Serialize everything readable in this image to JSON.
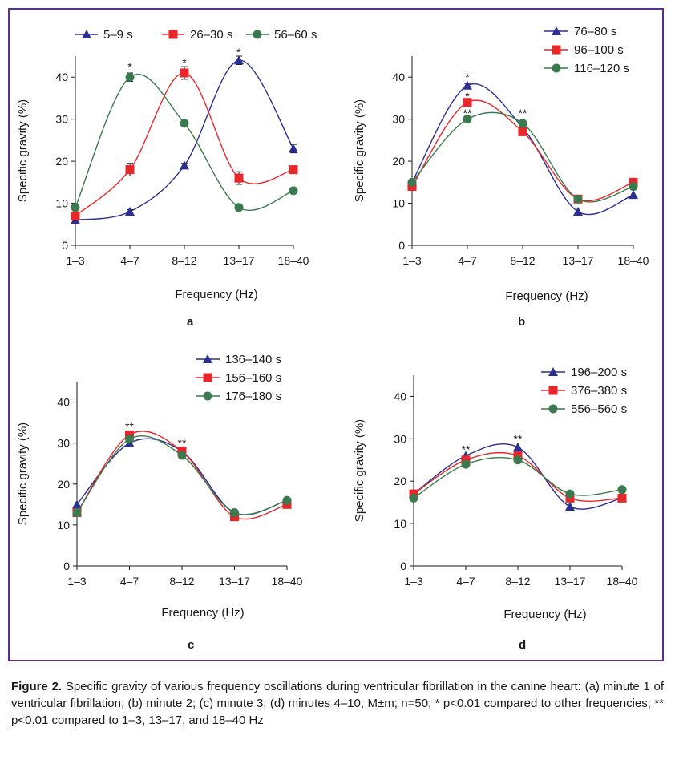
{
  "figure": {
    "caption_lead": "Figure 2.",
    "caption_text": " Specific gravity of various frequency oscillations during ventricular fibrillation in the canine heart: (a) minute 1 of ventricular fibrillation; (b) minute 2; (c) minute 3; (d) minutes 4–10; M±m; n=50; * p<0.01 compared to other frequencies; ** p<0.01 compared to 1–3, 13–17, and 18–40 Hz",
    "border_color": "#5b2d8c"
  },
  "chart_data": [
    {
      "panel": "a",
      "type": "line",
      "categories": [
        "1–3",
        "4–7",
        "8–12",
        "13–17",
        "18–40"
      ],
      "xlabel": "Frequency (Hz)",
      "ylabel": "Specific gravity (%)",
      "ylim": [
        0,
        45
      ],
      "yticks": [
        0,
        10,
        20,
        30,
        40
      ],
      "legend": "top-horizontal",
      "series": [
        {
          "name": "5–9 s",
          "color": "#2b2f8f",
          "marker": "triangle",
          "values": [
            6,
            8,
            19,
            44,
            23
          ],
          "err": [
            0,
            0.5,
            0.5,
            1,
            1
          ]
        },
        {
          "name": "26–30 s",
          "color": "#e8272a",
          "marker": "square",
          "values": [
            7,
            18,
            41,
            16,
            18
          ],
          "err": [
            0,
            1.5,
            1.5,
            1.5,
            0
          ]
        },
        {
          "name": "56–60 s",
          "color": "#3a7a4e",
          "marker": "circle",
          "values": [
            9,
            40,
            29,
            9,
            13
          ],
          "err": [
            0,
            1,
            0,
            0,
            0
          ]
        }
      ],
      "annotations": [
        {
          "category": "4–7",
          "y": 42.5,
          "text": "*"
        },
        {
          "category": "8–12",
          "y": 43.5,
          "text": "*"
        },
        {
          "category": "13–17",
          "y": 46,
          "text": "*"
        }
      ]
    },
    {
      "panel": "b",
      "type": "line",
      "categories": [
        "1–3",
        "4–7",
        "8–12",
        "13–17",
        "18–40"
      ],
      "xlabel": "Frequency (Hz)",
      "ylabel": "Specific gravity (%)",
      "ylim": [
        0,
        45
      ],
      "yticks": [
        0,
        10,
        20,
        30,
        40
      ],
      "legend": "top-right",
      "series": [
        {
          "name": "76–80 s",
          "color": "#2b2f8f",
          "marker": "triangle",
          "values": [
            15,
            38,
            28,
            8,
            12
          ],
          "err": [
            0,
            0.5,
            0,
            0,
            0
          ]
        },
        {
          "name": "96–100 s",
          "color": "#e8272a",
          "marker": "square",
          "values": [
            14,
            34,
            27,
            11,
            15
          ],
          "err": [
            0,
            0.5,
            0,
            0,
            0
          ]
        },
        {
          "name": "116–120 s",
          "color": "#3a7a4e",
          "marker": "circle",
          "values": [
            15,
            30,
            29,
            11,
            14
          ],
          "err": [
            0,
            0,
            0,
            0,
            0
          ]
        }
      ],
      "annotations": [
        {
          "category": "4–7",
          "y": 40,
          "text": "*"
        },
        {
          "category": "4–7",
          "y": 35.5,
          "text": "*"
        },
        {
          "category": "4–7",
          "y": 31.5,
          "text": "**"
        },
        {
          "category": "8–12",
          "y": 31.5,
          "text": "**"
        }
      ]
    },
    {
      "panel": "c",
      "type": "line",
      "categories": [
        "1–3",
        "4–7",
        "8–12",
        "13–17",
        "18–40"
      ],
      "xlabel": "Frequency (Hz)",
      "ylabel": "Specific gravity (%)",
      "ylim": [
        0,
        45
      ],
      "yticks": [
        0,
        10,
        20,
        30,
        40
      ],
      "legend": "top-right",
      "series": [
        {
          "name": "136–140 s",
          "color": "#2b2f8f",
          "marker": "triangle",
          "values": [
            15,
            30,
            28,
            13,
            16
          ],
          "err": [
            0,
            0,
            0,
            0,
            0
          ]
        },
        {
          "name": "156–160 s",
          "color": "#e8272a",
          "marker": "square",
          "values": [
            13,
            32,
            28,
            12,
            15
          ],
          "err": [
            0,
            0,
            0,
            0,
            0
          ]
        },
        {
          "name": "176–180 s",
          "color": "#3a7a4e",
          "marker": "circle",
          "values": [
            13,
            31,
            27,
            13,
            16
          ],
          "err": [
            0,
            0,
            0,
            0,
            0
          ]
        }
      ],
      "annotations": [
        {
          "category": "4–7",
          "y": 34,
          "text": "**"
        },
        {
          "category": "8–12",
          "y": 30,
          "text": "**"
        }
      ]
    },
    {
      "panel": "d",
      "type": "line",
      "categories": [
        "1–3",
        "4–7",
        "8–12",
        "13–17",
        "18–40"
      ],
      "xlabel": "Frequency (Hz)",
      "ylabel": "Specific gravity (%)",
      "ylim": [
        0,
        45
      ],
      "yticks": [
        0,
        10,
        20,
        30,
        40
      ],
      "legend": "top-right",
      "series": [
        {
          "name": "196–200 s",
          "color": "#2b2f8f",
          "marker": "triangle",
          "values": [
            17,
            26,
            28,
            14,
            16
          ],
          "err": [
            0,
            0,
            0,
            0,
            0
          ]
        },
        {
          "name": "376–380 s",
          "color": "#e8272a",
          "marker": "square",
          "values": [
            17,
            25,
            26,
            16,
            16
          ],
          "err": [
            0,
            0,
            0,
            0,
            0
          ]
        },
        {
          "name": "556–560 s",
          "color": "#3a7a4e",
          "marker": "circle",
          "values": [
            16,
            24,
            25,
            17,
            18
          ],
          "err": [
            0,
            0,
            0,
            0,
            0
          ]
        }
      ],
      "annotations": [
        {
          "category": "4–7",
          "y": 27.5,
          "text": "**"
        },
        {
          "category": "8–12",
          "y": 30,
          "text": "**"
        }
      ]
    }
  ]
}
